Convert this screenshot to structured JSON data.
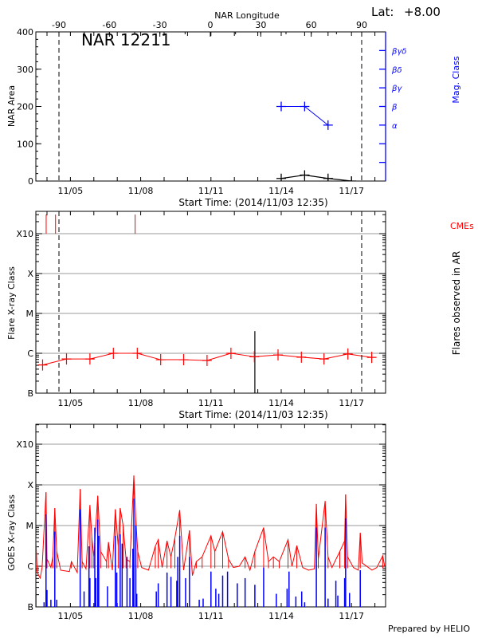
{
  "header": {
    "lat_label": "Lat:",
    "lat_value": "+8.00",
    "region_title": "NAR 12211",
    "footer": "Prepared by HELIO"
  },
  "colors": {
    "flare": "#ff0000",
    "short_channel": "#0000ff",
    "mag_class": "#0000ff",
    "grid": "#999999",
    "cme": "#ff0000"
  },
  "chart_data": [
    {
      "type": "line",
      "title": "NAR 12211",
      "xlabel": "Start Time: (2014/11/03 12:35)",
      "ylabel": "NAR Area",
      "ylabel_right": "Mag. Class",
      "top_axis_label": "NAR Longitude",
      "top_axis_ticks": [
        -90,
        -60,
        -30,
        0,
        30,
        60,
        90
      ],
      "limb_longitudes": [
        -90,
        90
      ],
      "xlim": [
        "2014-11-03T12:35",
        "2014-11-18T10:55"
      ],
      "x_tick_labels": [
        "11/05",
        "11/08",
        "11/11",
        "11/14",
        "11/17"
      ],
      "ylim": [
        0,
        400
      ],
      "y_ticks": [
        0,
        100,
        200,
        300,
        400
      ],
      "mag_class_levels": [
        "",
        "",
        "α",
        "β",
        "βγ",
        "βδ",
        "βγδ"
      ],
      "series": [
        {
          "name": "NAR Area",
          "color": "#000000",
          "points": [
            [
              "2014-11-14T00:00",
              7
            ],
            [
              "2014-11-15T00:00",
              16
            ],
            [
              "2014-11-16T00:00",
              7
            ],
            [
              "2014-11-17T00:00",
              0
            ]
          ]
        },
        {
          "name": "Mag. Class",
          "color": "#0000ff",
          "points": [
            [
              "2014-11-14T00:00",
              "β"
            ],
            [
              "2014-11-15T00:00",
              "β"
            ],
            [
              "2014-11-16T00:00",
              "α"
            ]
          ]
        }
      ]
    },
    {
      "type": "line",
      "xlabel": "Start Time: (2014/11/03 12:35)",
      "ylabel": "Flare X-ray Class",
      "ylabel_right": "Flares observed in AR",
      "cme_label": "CMEs",
      "y_scale": "log",
      "y_tick_labels": [
        "B",
        "C",
        "M",
        "X",
        "X10"
      ],
      "grid": true,
      "series": [
        {
          "color": "#ff0000",
          "points": [
            [
              "2014-11-03T19:30",
              "B5.1"
            ],
            [
              "2014-11-04T20:00",
              "B7.2"
            ],
            [
              "2014-11-05T20:00",
              "B7.2"
            ],
            [
              "2014-11-06T20:00",
              "C1.0"
            ],
            [
              "2014-11-07T20:30",
              "C1.0"
            ],
            [
              "2014-11-08T20:30",
              "B6.9"
            ],
            [
              "2014-11-09T20:00",
              "B6.9"
            ],
            [
              "2014-11-10T20:00",
              "B6.6"
            ],
            [
              "2014-11-11T20:30",
              "C1.0"
            ],
            [
              "2014-11-12T20:30",
              "B8.2"
            ],
            [
              "2014-11-13T20:45",
              "B9.1"
            ],
            [
              "2014-11-14T20:40",
              "B8.0"
            ],
            [
              "2014-11-15T19:50",
              "B7.2"
            ],
            [
              "2014-11-16T20:20",
              "B9.6"
            ],
            [
              "2014-11-17T20:45",
              "B7.9"
            ]
          ]
        }
      ],
      "flares_in_ar": [
        [
          "2014-11-12T21:00",
          "C3.6"
        ]
      ],
      "cmes": [
        "2014-11-03T23:10",
        "2014-11-04T08:45",
        "2014-11-07T18:20"
      ]
    },
    {
      "type": "line",
      "ylabel": "GOES X-ray Class",
      "y_scale": "log",
      "y_tick_labels": [
        "B",
        "C",
        "M",
        "X",
        "X10"
      ],
      "x_tick_labels": [
        "11/05",
        "11/08",
        "11/11",
        "11/14",
        "11/17"
      ],
      "grid": true,
      "series": [
        {
          "color": "#ff0000",
          "points": [
            [
              "2014-11-03T12:35",
              "C4.9"
            ],
            [
              "2014-11-03T14:00",
              "B7.0"
            ],
            [
              "2014-11-03T17:00",
              "B5.1"
            ],
            [
              "2014-11-03T19:00",
              "B9.3"
            ],
            [
              "2014-11-03T23:00",
              "M6.6"
            ],
            [
              "2014-11-04T00:00",
              "C1.5"
            ],
            [
              "2014-11-04T04:00",
              "B9.3"
            ],
            [
              "2014-11-04T06:00",
              "C1.7"
            ],
            [
              "2014-11-04T08:00",
              "M2.7"
            ],
            [
              "2014-11-04T10:00",
              "C2.3"
            ],
            [
              "2014-11-04T14:00",
              "B8.0"
            ],
            [
              "2014-11-04T23:00",
              "B7.4"
            ],
            [
              "2014-11-05T01:00",
              "C1.3"
            ],
            [
              "2014-11-05T07:00",
              "B7.0"
            ],
            [
              "2014-11-05T10:00",
              "M7.9"
            ],
            [
              "2014-11-05T12:00",
              "C1.3"
            ],
            [
              "2014-11-05T16:00",
              "B8.6"
            ],
            [
              "2014-11-05T20:00",
              "M3.2"
            ],
            [
              "2014-11-05T22:00",
              "C4.9"
            ],
            [
              "2014-11-06T00:00",
              "C1.7"
            ],
            [
              "2014-11-06T04:00",
              "M5.4"
            ],
            [
              "2014-11-06T07:00",
              "C2.3"
            ],
            [
              "2014-11-06T13:00",
              "C1.3"
            ],
            [
              "2014-11-06T15:00",
              "C3.9"
            ],
            [
              "2014-11-06T19:00",
              "B8.0"
            ],
            [
              "2014-11-06T22:00",
              "M2.5"
            ],
            [
              "2014-11-07T01:00",
              "C3.1"
            ],
            [
              "2014-11-07T03:00",
              "M2.7"
            ],
            [
              "2014-11-07T06:00",
              "M1.0"
            ],
            [
              "2014-11-07T09:00",
              "C1.5"
            ],
            [
              "2014-11-07T13:00",
              "C1.3"
            ],
            [
              "2014-11-07T17:00",
              "X1.7"
            ],
            [
              "2014-11-07T19:00",
              "M1.4"
            ],
            [
              "2014-11-07T21:00",
              "C2.3"
            ],
            [
              "2014-11-08T01:00",
              "B9.3"
            ],
            [
              "2014-11-08T08:00",
              "B8.0"
            ],
            [
              "2014-11-08T15:00",
              "C3.1"
            ],
            [
              "2014-11-08T18:00",
              "C4.5"
            ],
            [
              "2014-11-08T22:00",
              "B9.3"
            ],
            [
              "2014-11-09T03:00",
              "C4.2"
            ],
            [
              "2014-11-09T07:00",
              "C1.7"
            ],
            [
              "2014-11-09T11:00",
              "C4.9"
            ],
            [
              "2014-11-09T16:00",
              "M2.4"
            ],
            [
              "2014-11-09T20:00",
              "B8.0"
            ],
            [
              "2014-11-10T02:00",
              "C7.6"
            ],
            [
              "2014-11-10T05:00",
              "B5.9"
            ],
            [
              "2014-11-10T09:00",
              "C1.3"
            ],
            [
              "2014-11-10T15:00",
              "C1.7"
            ],
            [
              "2014-11-11T00:00",
              "C5.6"
            ],
            [
              "2014-11-11T04:00",
              "C2.3"
            ],
            [
              "2014-11-11T12:00",
              "C7.1"
            ],
            [
              "2014-11-11T18:00",
              "C1.5"
            ],
            [
              "2014-11-11T23:00",
              "B9.3"
            ],
            [
              "2014-11-12T05:00",
              "C1.0"
            ],
            [
              "2014-11-12T11:00",
              "C1.7"
            ],
            [
              "2014-11-12T16:00",
              "B8.0"
            ],
            [
              "2014-11-12T21:00",
              "C2.3"
            ],
            [
              "2014-11-13T06:00",
              "C8.9"
            ],
            [
              "2014-11-13T11:00",
              "C1.3"
            ],
            [
              "2014-11-13T16:00",
              "C1.7"
            ],
            [
              "2014-11-13T22:00",
              "C1.3"
            ],
            [
              "2014-11-14T07:00",
              "C4.5"
            ],
            [
              "2014-11-14T11:00",
              "C1.0"
            ],
            [
              "2014-11-14T16:00",
              "C3.2"
            ],
            [
              "2014-11-14T22:00",
              "B9.3"
            ],
            [
              "2014-11-15T04:00",
              "B8.0"
            ],
            [
              "2014-11-15T10:00",
              "B8.6"
            ],
            [
              "2014-11-15T12:00",
              "M3.4"
            ],
            [
              "2014-11-15T14:00",
              "C1.5"
            ],
            [
              "2014-11-15T21:00",
              "M4.0"
            ],
            [
              "2014-11-16T00:00",
              "C1.7"
            ],
            [
              "2014-11-16T04:00",
              "B9.3"
            ],
            [
              "2014-11-16T12:00",
              "C2.3"
            ],
            [
              "2014-11-16T17:00",
              "C4.2"
            ],
            [
              "2014-11-16T18:00",
              "M5.8"
            ],
            [
              "2014-11-16T20:00",
              "C1.7"
            ],
            [
              "2014-11-17T02:00",
              "B9.3"
            ],
            [
              "2014-11-17T07:00",
              "B8.0"
            ],
            [
              "2014-11-17T09:00",
              "C6.6"
            ],
            [
              "2014-11-17T11:00",
              "C1.2"
            ],
            [
              "2014-11-17T21:00",
              "B8.0"
            ],
            [
              "2014-11-18T02:00",
              "B9.3"
            ],
            [
              "2014-11-18T08:00",
              "C1.8"
            ],
            [
              "2014-11-18T10:00",
              "C1.0"
            ]
          ]
        },
        {
          "color": "#0000ff",
          "points": [
            [
              "2014-11-03T12:35",
              "B2.8"
            ],
            [
              "2014-11-03T21:00",
              "B1.3"
            ],
            [
              "2014-11-03T23:00",
              "M1.9"
            ],
            [
              "2014-11-04T00:00",
              "B2.6"
            ],
            [
              "2014-11-04T04:00",
              "B1.5"
            ],
            [
              "2014-11-04T08:00",
              "C7.1"
            ],
            [
              "2014-11-04T10:00",
              "B1.5"
            ],
            [
              "2014-11-05T10:00",
              "M2.5"
            ],
            [
              "2014-11-05T14:00",
              "B2.4"
            ],
            [
              "2014-11-05T19:00",
              "C3.1"
            ],
            [
              "2014-11-05T20:00",
              "B5.1"
            ],
            [
              "2014-11-06T01:00",
              "C8.9"
            ],
            [
              "2014-11-06T02:00",
              "B5.1"
            ],
            [
              "2014-11-06T04:00",
              "M1.4"
            ],
            [
              "2014-11-06T05:00",
              "C5.6"
            ],
            [
              "2014-11-06T14:00",
              "B3.2"
            ],
            [
              "2014-11-06T22:00",
              "C5.6"
            ],
            [
              "2014-11-06T23:30",
              "B7.0"
            ],
            [
              "2014-11-07T03:00",
              "C6.1"
            ],
            [
              "2014-11-07T05:00",
              "C3.6"
            ],
            [
              "2014-11-07T10:00",
              "C1.7"
            ],
            [
              "2014-11-07T13:00",
              "B5.1"
            ],
            [
              "2014-11-07T16:00",
              "C2.7"
            ],
            [
              "2014-11-07T17:00",
              "M4.6"
            ],
            [
              "2014-11-07T19:00",
              "M1.0"
            ],
            [
              "2014-11-07T20:00",
              "B2.1"
            ],
            [
              "2014-11-08T16:00",
              "B2.4"
            ],
            [
              "2014-11-08T18:00",
              "B3.8"
            ],
            [
              "2014-11-09T03:00",
              "B7.0"
            ],
            [
              "2014-11-09T07:00",
              "B5.5"
            ],
            [
              "2014-11-09T13:00",
              "B4.4"
            ],
            [
              "2014-11-09T14:00",
              "C1.7"
            ],
            [
              "2014-11-09T16:00",
              "C5.6"
            ],
            [
              "2014-11-09T22:00",
              "B5.1"
            ],
            [
              "2014-11-10T02:00",
              "C1.7"
            ],
            [
              "2014-11-10T12:00",
              "B1.5"
            ],
            [
              "2014-11-10T16:00",
              "B1.6"
            ],
            [
              "2014-11-11T00:00",
              "B7.4"
            ],
            [
              "2014-11-11T05:00",
              "B2.8"
            ],
            [
              "2014-11-11T08:00",
              "B2.1"
            ],
            [
              "2014-11-11T12:00",
              "B5.9"
            ],
            [
              "2014-11-11T17:00",
              "B7.4"
            ],
            [
              "2014-11-12T03:00",
              "B3.8"
            ],
            [
              "2014-11-12T11:00",
              "B5.1"
            ],
            [
              "2014-11-12T21:00",
              "B3.5"
            ],
            [
              "2014-11-13T06:00",
              "B9.3"
            ],
            [
              "2014-11-13T19:00",
              "B2.1"
            ],
            [
              "2014-11-14T06:00",
              "B2.8"
            ],
            [
              "2014-11-14T08:00",
              "B7.4"
            ],
            [
              "2014-11-14T15:00",
              "B1.8"
            ],
            [
              "2014-11-14T21:00",
              "B2.4"
            ],
            [
              "2014-11-15T00:00",
              "B1.3"
            ],
            [
              "2014-11-15T12:00",
              "C8.9"
            ],
            [
              "2014-11-15T21:00",
              "C8.9"
            ],
            [
              "2014-11-16T00:00",
              "B1.6"
            ],
            [
              "2014-11-16T08:00",
              "B4.4"
            ],
            [
              "2014-11-16T10:00",
              "B1.9"
            ],
            [
              "2014-11-16T17:00",
              "B5.1"
            ],
            [
              "2014-11-16T18:00",
              "M1.5"
            ],
            [
              "2014-11-16T22:00",
              "B2.2"
            ],
            [
              "2014-11-17T09:00",
              "B8.0"
            ]
          ]
        }
      ]
    }
  ]
}
